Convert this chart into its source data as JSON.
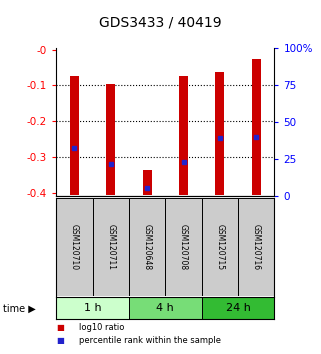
{
  "title": "GDS3433 / 40419",
  "samples": [
    "GSM120710",
    "GSM120711",
    "GSM120648",
    "GSM120708",
    "GSM120715",
    "GSM120716"
  ],
  "bar_tops": [
    -0.075,
    -0.095,
    -0.335,
    -0.073,
    -0.062,
    -0.025
  ],
  "bar_bottoms": [
    -0.405,
    -0.405,
    -0.405,
    -0.405,
    -0.405,
    -0.405
  ],
  "blue_positions": [
    -0.275,
    -0.318,
    -0.385,
    -0.315,
    -0.248,
    -0.245
  ],
  "bar_color": "#cc0000",
  "blue_color": "#2222cc",
  "time_groups": [
    {
      "label": "1 h",
      "start": 0,
      "end": 2,
      "color": "#ccffcc"
    },
    {
      "label": "4 h",
      "start": 2,
      "end": 4,
      "color": "#77dd77"
    },
    {
      "label": "24 h",
      "start": 4,
      "end": 6,
      "color": "#33bb33"
    }
  ],
  "ylim": [
    -0.41,
    0.005
  ],
  "left_ticks": [
    0,
    -0.1,
    -0.2,
    -0.3,
    -0.4
  ],
  "left_tick_labels": [
    "-0",
    "-0.1",
    "-0.2",
    "-0.3",
    "-0.4"
  ],
  "right_ticks": [
    0,
    25,
    50,
    75,
    100
  ],
  "right_tick_labels": [
    "0",
    "25",
    "50",
    "75",
    "100%"
  ],
  "grid_values": [
    -0.1,
    -0.2,
    -0.3
  ],
  "bar_width": 0.25,
  "sample_label_color": "#cccccc",
  "legend": [
    {
      "label": "log10 ratio",
      "color": "#cc0000"
    },
    {
      "label": "percentile rank within the sample",
      "color": "#2222cc"
    }
  ]
}
